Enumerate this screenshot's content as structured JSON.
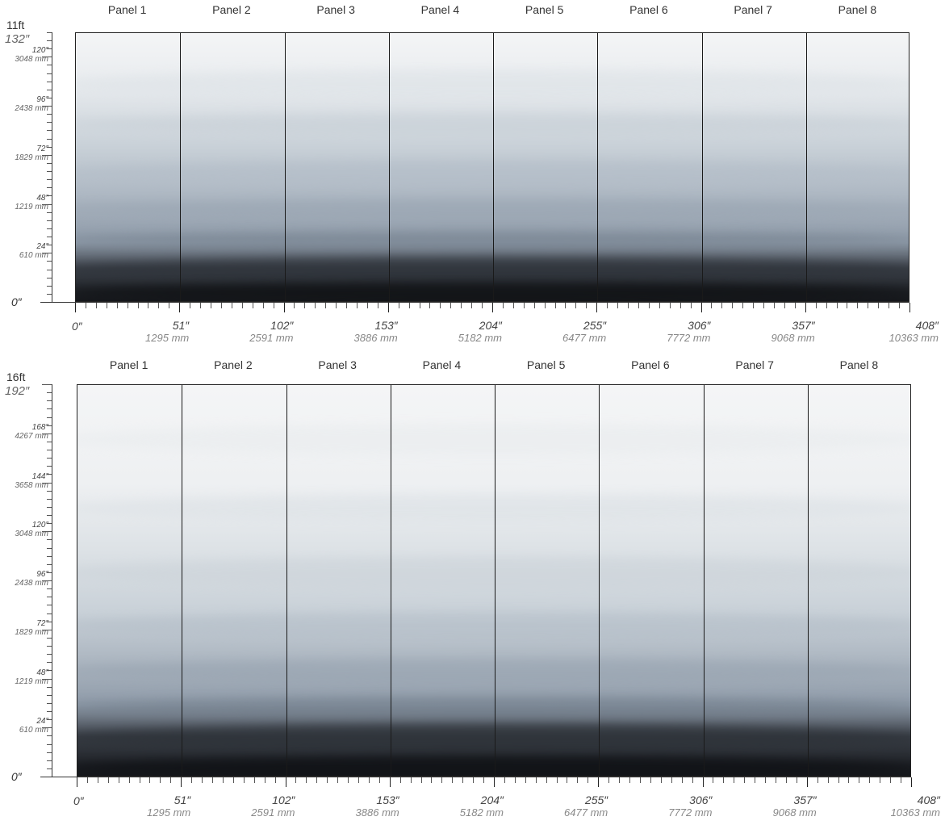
{
  "figures": [
    {
      "height_label": "11ft",
      "top_label": "132″",
      "panels": [
        "Panel 1",
        "Panel 2",
        "Panel 3",
        "Panel 4",
        "Panel 5",
        "Panel 6",
        "Panel 7",
        "Panel 8"
      ],
      "y_zero": "0″",
      "y_ticks": [
        {
          "in": "120″",
          "mm": "3048 mm"
        },
        {
          "in": "96″",
          "mm": "2438 mm"
        },
        {
          "in": "72″",
          "mm": "1829 mm"
        },
        {
          "in": "48″",
          "mm": "1219 mm"
        },
        {
          "in": "24″",
          "mm": "610 mm"
        }
      ],
      "x_zero": "0″",
      "x_ticks": [
        {
          "in": "51″",
          "mm": "1295 mm"
        },
        {
          "in": "102″",
          "mm": "2591 mm"
        },
        {
          "in": "153″",
          "mm": "3886 mm"
        },
        {
          "in": "204″",
          "mm": "5182 mm"
        },
        {
          "in": "255″",
          "mm": "6477 mm"
        },
        {
          "in": "306″",
          "mm": "7772 mm"
        },
        {
          "in": "357″",
          "mm": "9068 mm"
        },
        {
          "in": "408″",
          "mm": "10363 mm"
        }
      ]
    },
    {
      "height_label": "16ft",
      "top_label": "192″",
      "panels": [
        "Panel 1",
        "Panel 2",
        "Panel 3",
        "Panel 4",
        "Panel 5",
        "Panel 6",
        "Panel 7",
        "Panel 8"
      ],
      "y_zero": "0″",
      "y_ticks": [
        {
          "in": "168″",
          "mm": "4267 mm"
        },
        {
          "in": "144″",
          "mm": "3658 mm"
        },
        {
          "in": "120″",
          "mm": "3048 mm"
        },
        {
          "in": "96″",
          "mm": "2438 mm"
        },
        {
          "in": "72″",
          "mm": "1829 mm"
        },
        {
          "in": "48″",
          "mm": "1219 mm"
        },
        {
          "in": "24″",
          "mm": "610 mm"
        }
      ],
      "x_zero": "0″",
      "x_ticks": [
        {
          "in": "51″",
          "mm": "1295 mm"
        },
        {
          "in": "102″",
          "mm": "2591 mm"
        },
        {
          "in": "153″",
          "mm": "3886 mm"
        },
        {
          "in": "204″",
          "mm": "5182 mm"
        },
        {
          "in": "255″",
          "mm": "6477 mm"
        },
        {
          "in": "306″",
          "mm": "7772 mm"
        },
        {
          "in": "357″",
          "mm": "9068 mm"
        },
        {
          "in": "408″",
          "mm": "10363 mm"
        }
      ]
    }
  ],
  "colors": {
    "sky": "#f4f5f6",
    "mist": "#c9d1d8",
    "mid": "#8e9aa8",
    "dark": "#3a3f47",
    "ink": "#16181c",
    "frame": "#222222"
  }
}
